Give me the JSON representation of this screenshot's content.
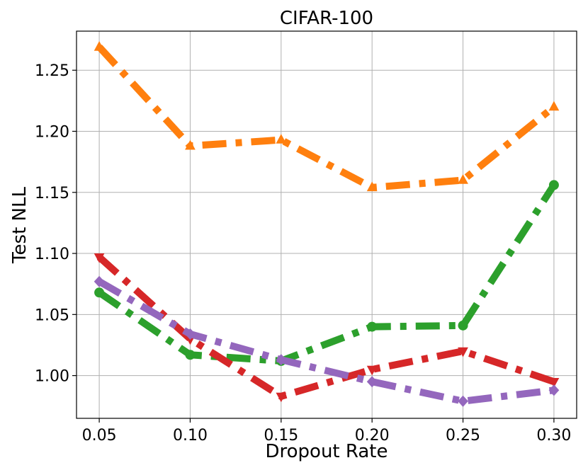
{
  "chart_data": {
    "type": "line",
    "title": "CIFAR-100",
    "xlabel": "Dropout Rate",
    "ylabel": "Test NLL",
    "x": [
      0.05,
      0.1,
      0.15,
      0.2,
      0.25,
      0.3
    ],
    "x_tick_labels": [
      "0.05",
      "0.10",
      "0.15",
      "0.20",
      "0.25",
      "0.30"
    ],
    "y_ticks": [
      1.0,
      1.05,
      1.1,
      1.15,
      1.2,
      1.25
    ],
    "y_tick_labels": [
      "1.00",
      "1.05",
      "1.10",
      "1.15",
      "1.20",
      "1.25"
    ],
    "xlim": [
      0.0375,
      0.3125
    ],
    "ylim": [
      0.965,
      1.282
    ],
    "grid": true,
    "series": [
      {
        "color": "#ff7f0e",
        "marker": "triangle-up",
        "values": [
          1.269,
          1.188,
          1.193,
          1.154,
          1.16,
          1.22
        ]
      },
      {
        "color": "#2ca02c",
        "marker": "circle",
        "values": [
          1.068,
          1.017,
          1.012,
          1.04,
          1.041,
          1.156
        ]
      },
      {
        "color": "#d62728",
        "marker": "triangle-down",
        "values": [
          1.097,
          1.03,
          0.983,
          1.005,
          1.02,
          0.995
        ]
      },
      {
        "color": "#9467bd",
        "marker": "diamond",
        "values": [
          1.077,
          1.034,
          1.013,
          0.995,
          0.979,
          0.988
        ]
      }
    ]
  }
}
